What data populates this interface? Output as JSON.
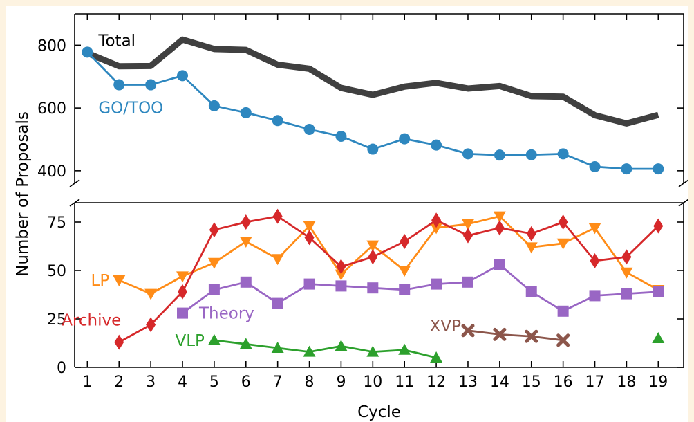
{
  "chart_data": {
    "type": "line",
    "xlabel": "Cycle",
    "ylabel": "Number of Proposals",
    "x": [
      1,
      2,
      3,
      4,
      5,
      6,
      7,
      8,
      9,
      10,
      11,
      12,
      13,
      14,
      15,
      16,
      17,
      18,
      19
    ],
    "xlim": [
      0.6,
      19.8
    ],
    "grid": false,
    "panels": {
      "top": {
        "ylim": [
          360,
          900
        ],
        "yticks": [
          "400",
          "600",
          "800"
        ],
        "series": [
          {
            "name": "Total",
            "color": "#404040",
            "marker": "none",
            "x": [
              1,
              2,
              3,
              4,
              5,
              6,
              7,
              8,
              9,
              10,
              11,
              12,
              13,
              14,
              15,
              16,
              17,
              18,
              19
            ],
            "values": [
              775,
              733,
              734,
              818,
              788,
              785,
              738,
              725,
              664,
              642,
              668,
              680,
              662,
              670,
              638,
              636,
              577,
              551,
              578
            ]
          },
          {
            "name": "GO/TOO",
            "color": "#2e87bf",
            "marker": "circle",
            "x": [
              1,
              2,
              3,
              4,
              5,
              6,
              7,
              8,
              9,
              10,
              11,
              12,
              13,
              14,
              15,
              16,
              17,
              18,
              19
            ],
            "values": [
              778,
              674,
              674,
              703,
              607,
              585,
              560,
              532,
              510,
              469,
              502,
              482,
              454,
              450,
              451,
              454,
              413,
              406,
              406
            ]
          }
        ]
      },
      "bottom": {
        "ylim": [
          0,
          85
        ],
        "yticks": [
          "0",
          "25",
          "50",
          "75"
        ],
        "series": [
          {
            "name": "LP",
            "color": "#ff8c17",
            "marker": "triangle-down",
            "x": [
              2,
              3,
              4,
              5,
              6,
              7,
              8,
              9,
              10,
              11,
              12,
              13,
              14,
              15,
              16,
              17,
              18,
              19
            ],
            "values": [
              45,
              38,
              47,
              54,
              65,
              56,
              73,
              48,
              63,
              50,
              72,
              74,
              78,
              62,
              64,
              72,
              49,
              40
            ]
          },
          {
            "name": "Archive",
            "color": "#d6282a",
            "marker": "diamond",
            "x": [
              2,
              3,
              4,
              5,
              6,
              7,
              8,
              9,
              10,
              11,
              12,
              13,
              14,
              15,
              16,
              17,
              18,
              19
            ],
            "values": [
              13,
              22,
              39,
              71,
              75,
              78,
              67,
              52,
              57,
              65,
              76,
              68,
              72,
              69,
              75,
              55,
              57,
              73
            ]
          },
          {
            "name": "Theory",
            "color": "#9966c4",
            "marker": "square",
            "x": [
              4,
              5,
              6,
              7,
              8,
              9,
              10,
              11,
              12,
              13,
              14,
              15,
              16,
              17,
              18,
              19
            ],
            "values": [
              28,
              40,
              44,
              33,
              43,
              42,
              41,
              40,
              43,
              44,
              53,
              39,
              29,
              37,
              38,
              39
            ]
          },
          {
            "name": "VLP",
            "color": "#2ca02c",
            "marker": "triangle-up",
            "x": [
              5,
              6,
              7,
              8,
              9,
              10,
              11,
              12
            ],
            "values": [
              14,
              12,
              10,
              8,
              11,
              8,
              9,
              5
            ]
          },
          {
            "name": "VLP",
            "color": "#2ca02c",
            "marker": "triangle-up",
            "x": [
              19
            ],
            "values": [
              15
            ]
          },
          {
            "name": "XVP",
            "color": "#8c564b",
            "marker": "x",
            "x": [
              13,
              14,
              15,
              16
            ],
            "values": [
              19,
              17,
              16,
              14
            ]
          }
        ]
      }
    },
    "annotations": [
      {
        "text": "Total",
        "series": "Total",
        "color": "#000000"
      },
      {
        "text": "GO/TOO",
        "series": "GO/TOO",
        "color": "#2e87bf"
      },
      {
        "text": "LP",
        "series": "LP",
        "color": "#ff8c17"
      },
      {
        "text": "Archive",
        "series": "Archive",
        "color": "#d6282a"
      },
      {
        "text": "Theory",
        "series": "Theory",
        "color": "#9966c4"
      },
      {
        "text": "VLP",
        "series": "VLP",
        "color": "#2ca02c"
      },
      {
        "text": "XVP",
        "series": "XVP",
        "color": "#8c564b"
      }
    ]
  }
}
